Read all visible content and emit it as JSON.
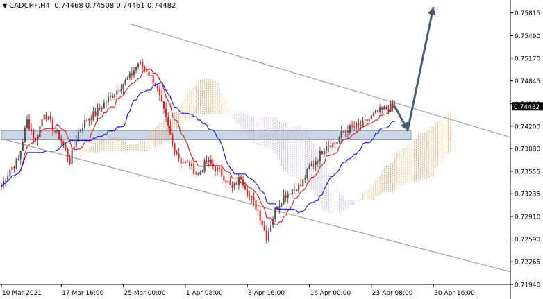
{
  "header": {
    "symbol": "CADCHF,H4",
    "ohlc": "0.74468 0.74508 0.74461 0.74482"
  },
  "colors": {
    "bull_candle": "#555555",
    "bear_candle": "#e02020",
    "tenkan": "#e02020",
    "kijun": "#2020d0",
    "cloud_bull": "#f0a060",
    "cloud_bear": "#c9b6d8",
    "channel": "#a8a8a8",
    "zone": "#b8c8dc",
    "arrow": "#4a5d70",
    "badge": "#000000"
  },
  "chart_data": {
    "type": "candlestick",
    "instrument": "CADCHF",
    "timeframe": "H4",
    "ylim": [
      0.7194,
      0.7598
    ],
    "y_ticks": [
      "0.75815",
      "0.75490",
      "0.75170",
      "0.74845",
      "0.74520",
      "0.74200",
      "0.73880",
      "0.73555",
      "0.73235",
      "0.72910",
      "0.72590",
      "0.72265",
      "0.71940"
    ],
    "x_ticks": [
      "10 Mar 2021",
      "17 Mar 16:00",
      "25 Mar 00:00",
      "1 Apr 08:00",
      "8 Apr 16:00",
      "16 Apr 00:00",
      "23 Apr 08:00",
      "30 Apr 16:00"
    ],
    "current_price": "0.74482",
    "close_path": [
      [
        0,
        0.7335
      ],
      [
        4,
        0.7358
      ],
      [
        8,
        0.7372
      ],
      [
        12,
        0.7428
      ],
      [
        16,
        0.7398
      ],
      [
        20,
        0.744
      ],
      [
        24,
        0.7418
      ],
      [
        28,
        0.74
      ],
      [
        32,
        0.737
      ],
      [
        36,
        0.7412
      ],
      [
        40,
        0.743
      ],
      [
        44,
        0.7438
      ],
      [
        48,
        0.7452
      ],
      [
        52,
        0.7465
      ],
      [
        56,
        0.7478
      ],
      [
        60,
        0.749
      ],
      [
        64,
        0.751
      ],
      [
        68,
        0.75
      ],
      [
        72,
        0.748
      ],
      [
        76,
        0.744
      ],
      [
        80,
        0.7395
      ],
      [
        84,
        0.737
      ],
      [
        88,
        0.7365
      ],
      [
        92,
        0.735
      ],
      [
        96,
        0.737
      ],
      [
        100,
        0.736
      ],
      [
        104,
        0.7348
      ],
      [
        108,
        0.733
      ],
      [
        112,
        0.7348
      ],
      [
        116,
        0.732
      ],
      [
        120,
        0.73
      ],
      [
        124,
        0.7262
      ],
      [
        128,
        0.73
      ],
      [
        132,
        0.732
      ],
      [
        136,
        0.733
      ],
      [
        140,
        0.7335
      ],
      [
        144,
        0.736
      ],
      [
        148,
        0.7375
      ],
      [
        152,
        0.7395
      ],
      [
        156,
        0.7395
      ],
      [
        160,
        0.7412
      ],
      [
        164,
        0.7418
      ],
      [
        168,
        0.742
      ],
      [
        172,
        0.743
      ],
      [
        176,
        0.744
      ],
      [
        180,
        0.7445
      ],
      [
        184,
        0.7448
      ]
    ],
    "channel_upper": [
      [
        60,
        0.7566
      ],
      [
        238,
        0.7404
      ]
    ],
    "channel_lower": [
      [
        0,
        0.7402
      ],
      [
        238,
        0.7212
      ]
    ],
    "support_zone": [
      0.74005,
      0.74135
    ],
    "forecast_arrow": [
      [
        184,
        0.7448
      ],
      [
        190,
        0.7414
      ],
      [
        202,
        0.759
      ]
    ]
  }
}
